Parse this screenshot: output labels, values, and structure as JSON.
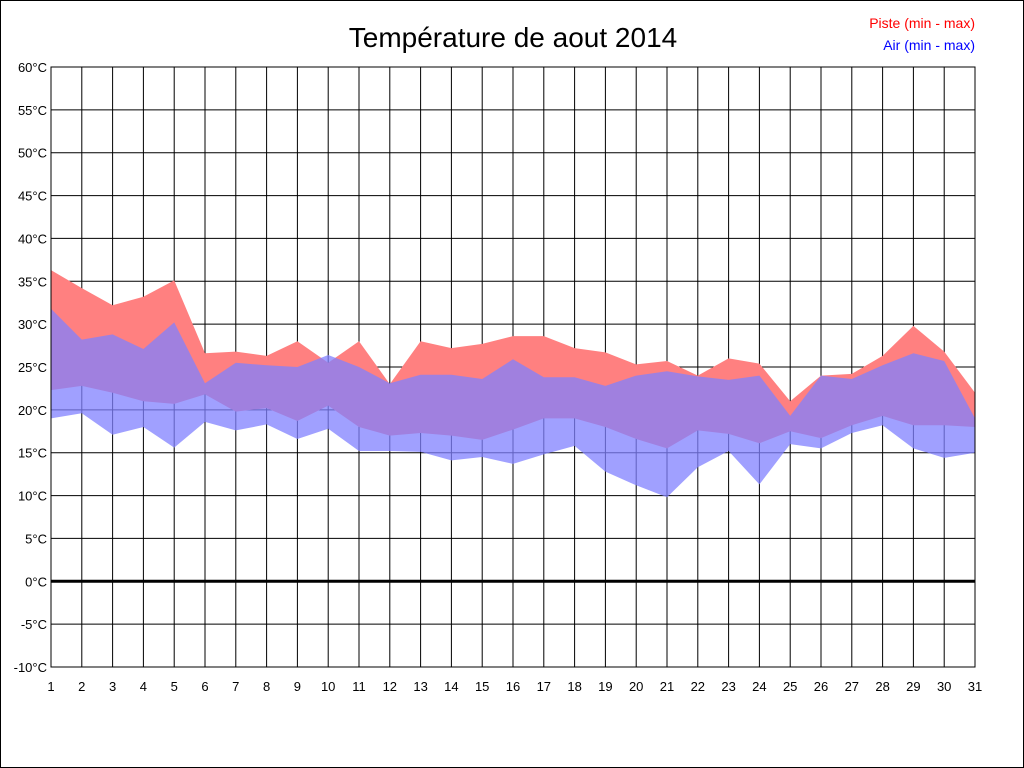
{
  "chart_data": {
    "type": "area",
    "title": "Température de aout 2014",
    "xlabel": "",
    "ylabel": "",
    "x": [
      1,
      2,
      3,
      4,
      5,
      6,
      7,
      8,
      9,
      10,
      11,
      12,
      13,
      14,
      15,
      16,
      17,
      18,
      19,
      20,
      21,
      22,
      23,
      24,
      25,
      26,
      27,
      28,
      29,
      30,
      31
    ],
    "xlim": [
      1,
      31
    ],
    "ylim": [
      -10,
      60
    ],
    "ytick_values": [
      -10,
      -5,
      0,
      5,
      10,
      15,
      20,
      25,
      30,
      35,
      40,
      45,
      50,
      55,
      60
    ],
    "ytick_labels": [
      "-10°C",
      "-5°C",
      "0°C",
      "5°C",
      "10°C",
      "15°C",
      "20°C",
      "25°C",
      "30°C",
      "35°C",
      "40°C",
      "45°C",
      "50°C",
      "55°C",
      "60°C"
    ],
    "grid": true,
    "zero_line": 0,
    "legend_position": "top-right",
    "series": [
      {
        "name": "Piste (min - max)",
        "color": "#ff0000",
        "fill": "#ff8080",
        "min": [
          22.3,
          22.8,
          22.0,
          21.0,
          20.7,
          21.8,
          19.8,
          20.2,
          18.7,
          20.5,
          18.0,
          17.0,
          17.3,
          17.0,
          16.5,
          17.7,
          19.0,
          19.0,
          18.0,
          16.6,
          15.5,
          17.6,
          17.2,
          16.1,
          17.5,
          16.7,
          18.2,
          19.3,
          18.2,
          18.2,
          18.0
        ],
        "max": [
          36.3,
          34.2,
          32.2,
          33.2,
          35.1,
          26.6,
          26.8,
          26.3,
          28.0,
          25.5,
          28.0,
          23.0,
          28.0,
          27.2,
          27.7,
          28.6,
          28.6,
          27.2,
          26.7,
          25.3,
          25.7,
          24.0,
          26.0,
          25.4,
          21.0,
          24.0,
          24.2,
          26.3,
          29.8,
          26.8,
          22.0
        ]
      },
      {
        "name": "Air (min - max)",
        "color": "#0000ff",
        "fill": "#8080ff",
        "min": [
          19.0,
          19.6,
          17.1,
          18.0,
          15.6,
          18.6,
          17.6,
          18.3,
          16.6,
          17.8,
          15.2,
          15.2,
          15.1,
          14.1,
          14.5,
          13.7,
          14.8,
          15.8,
          12.8,
          11.2,
          9.8,
          13.3,
          15.2,
          11.3,
          16.0,
          15.5,
          17.3,
          18.2,
          15.5,
          14.4,
          15.0
        ],
        "max": [
          31.8,
          28.2,
          28.8,
          27.1,
          30.2,
          23.1,
          25.5,
          25.2,
          25.0,
          26.4,
          25.0,
          23.1,
          24.1,
          24.1,
          23.6,
          25.9,
          23.8,
          23.8,
          22.8,
          24.0,
          24.5,
          23.9,
          23.5,
          24.0,
          19.3,
          24.0,
          23.6,
          25.2,
          26.6,
          25.7,
          19.0
        ]
      }
    ]
  }
}
